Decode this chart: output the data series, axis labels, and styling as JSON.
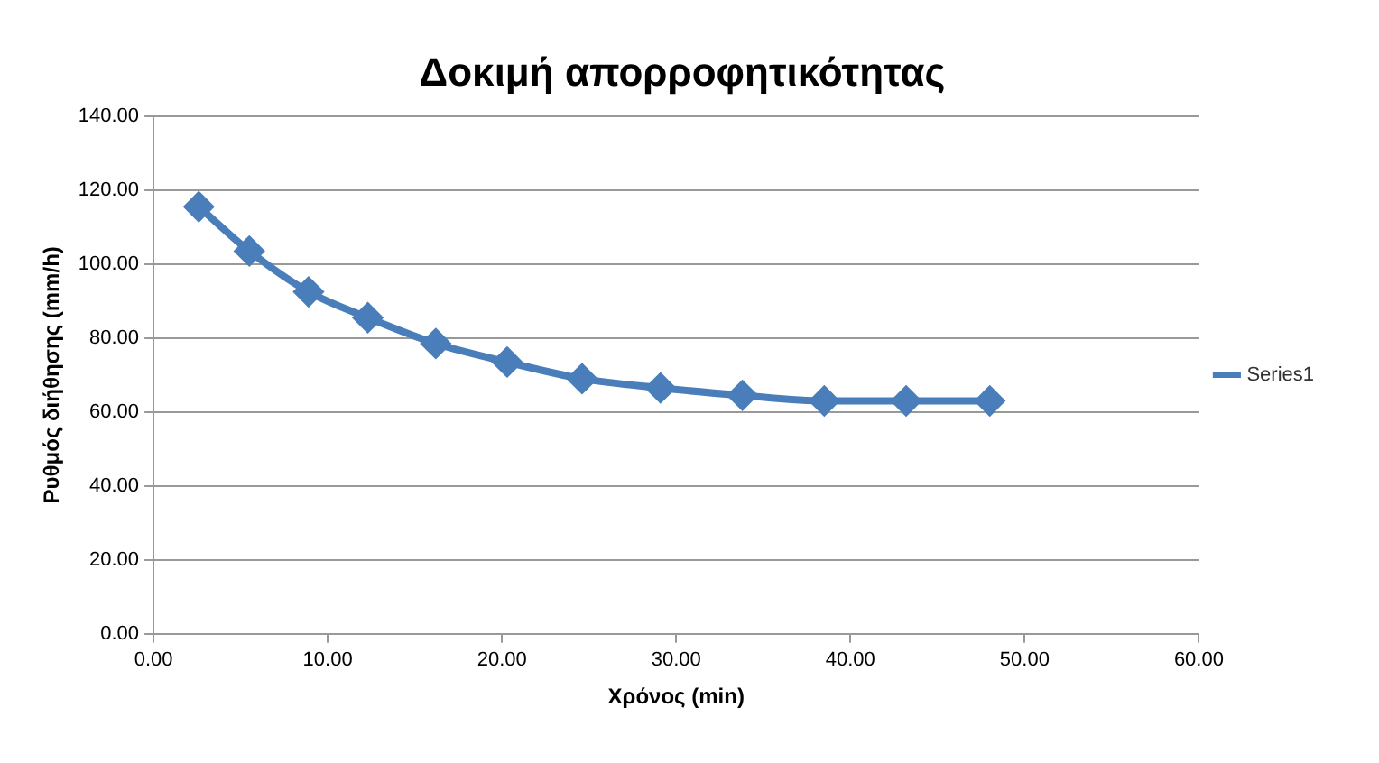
{
  "chart_data": {
    "type": "line",
    "title": "Δοκιμή απορροφητικότητας",
    "xlabel": "Χρόνος (min)",
    "ylabel": "Ρυθμός διήθησης (mm/h)",
    "x": [
      2.6,
      5.5,
      8.9,
      12.3,
      16.2,
      20.3,
      24.6,
      29.1,
      33.8,
      38.5,
      43.2,
      48.0
    ],
    "series": [
      {
        "name": "Series1",
        "color": "#4a7ebb",
        "values": [
          115.5,
          103.5,
          92.5,
          85.5,
          78.5,
          73.5,
          69,
          66.5,
          64.5,
          63,
          63,
          63
        ]
      }
    ],
    "xlim": [
      0,
      60
    ],
    "xticks": [
      {
        "value": 0,
        "label": "0.00"
      },
      {
        "value": 10,
        "label": "10.00"
      },
      {
        "value": 20,
        "label": "20.00"
      },
      {
        "value": 30,
        "label": "30.00"
      },
      {
        "value": 40,
        "label": "40.00"
      },
      {
        "value": 50,
        "label": "50.00"
      },
      {
        "value": 60,
        "label": "60.00"
      }
    ],
    "ylim": [
      0,
      140
    ],
    "yticks": [
      {
        "value": 0,
        "label": "0.00"
      },
      {
        "value": 20,
        "label": "20.00"
      },
      {
        "value": 40,
        "label": "40.00"
      },
      {
        "value": 60,
        "label": "60.00"
      },
      {
        "value": 80,
        "label": "80.00"
      },
      {
        "value": 100,
        "label": "100.00"
      },
      {
        "value": 120,
        "label": "120.00"
      },
      {
        "value": 140,
        "label": "140.00"
      }
    ],
    "grid": "y",
    "legend": "right",
    "marker": "diamond",
    "line_style": "solid"
  }
}
